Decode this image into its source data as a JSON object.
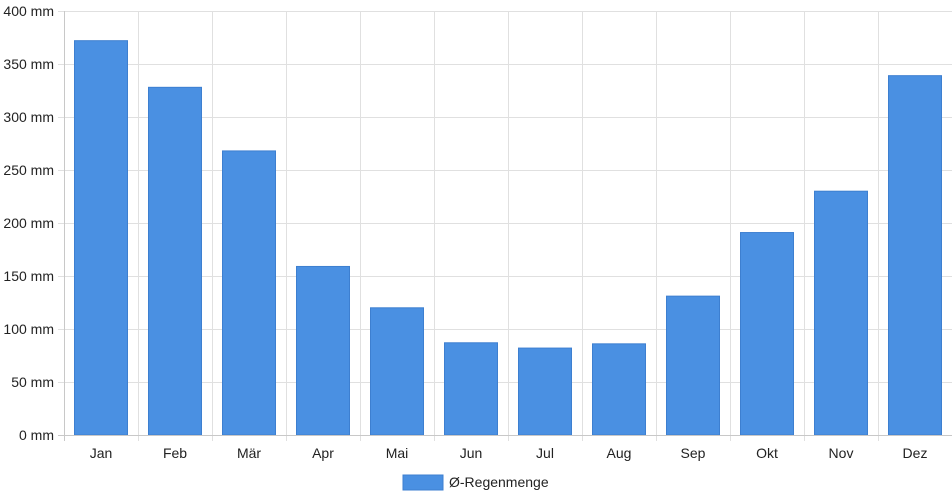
{
  "chart_data": {
    "type": "bar",
    "categories": [
      "Jan",
      "Feb",
      "Mär",
      "Apr",
      "Mai",
      "Jun",
      "Jul",
      "Aug",
      "Sep",
      "Okt",
      "Nov",
      "Dez"
    ],
    "series": [
      {
        "name": "Ø-Regenmenge",
        "values": [
          372,
          328,
          268,
          159,
          120,
          87,
          82,
          86,
          131,
          191,
          230,
          339
        ],
        "color": "#4a90e2"
      }
    ],
    "y_unit": "mm",
    "ylim": [
      0,
      400
    ],
    "y_ticks": [
      0,
      50,
      100,
      150,
      200,
      250,
      300,
      350,
      400
    ],
    "y_tick_labels": [
      "0 mm",
      "50 mm",
      "100 mm",
      "150 mm",
      "200 mm",
      "250 mm",
      "300 mm",
      "350 mm",
      "400 mm"
    ],
    "grid": true,
    "legend_position": "bottom-center"
  }
}
